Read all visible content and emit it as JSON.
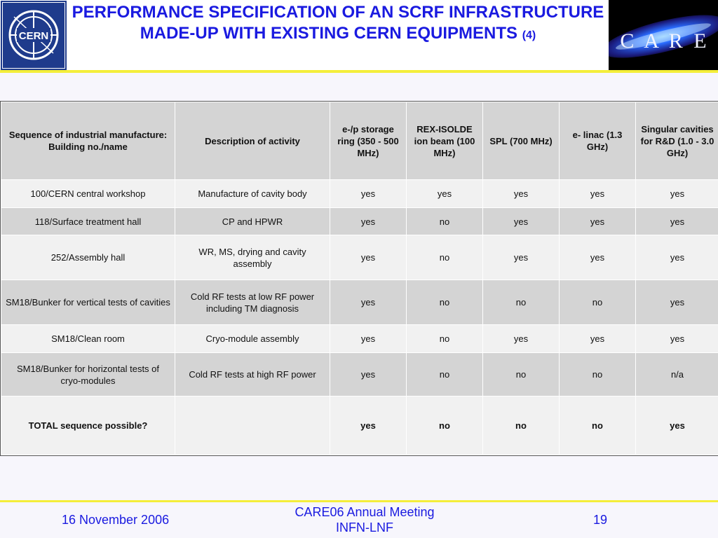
{
  "header": {
    "title_main": "PERFORMANCE SPECIFICATION OF AN SCRF INFRASTRUCTURE MADE-UP WITH EXISTING CERN EQUIPMENTS",
    "title_sub": "(4)",
    "left_logo_text": "CERN",
    "right_logo_text": "C A R E"
  },
  "table": {
    "headers": [
      "Sequence of industrial manufacture: Building no./name",
      "Description of activity",
      "e-/p storage ring (350 - 500 MHz)",
      "REX-ISOLDE ion beam (100 MHz)",
      "SPL (700 MHz)",
      "e- linac (1.3 GHz)",
      "Singular cavities for R&D (1.0 - 3.0 GHz)"
    ],
    "rows": [
      [
        "100/CERN central workshop",
        "Manufacture of cavity body",
        "yes",
        "yes",
        "yes",
        "yes",
        "yes"
      ],
      [
        "118/Surface treatment hall",
        "CP and HPWR",
        "yes",
        "no",
        "yes",
        "yes",
        "yes"
      ],
      [
        "252/Assembly hall",
        "WR, MS, drying and cavity assembly",
        "yes",
        "no",
        "yes",
        "yes",
        "yes"
      ],
      [
        "SM18/Bunker for vertical tests of cavities",
        "Cold RF tests at low RF power including TM diagnosis",
        "yes",
        "no",
        "no",
        "no",
        "yes"
      ],
      [
        "SM18/Clean room",
        "Cryo-module assembly",
        "yes",
        "no",
        "yes",
        "yes",
        "yes"
      ],
      [
        "SM18/Bunker for horizontal tests of cryo-modules",
        "Cold RF tests at high RF power",
        "yes",
        "no",
        "no",
        "no",
        "n/a"
      ],
      [
        "TOTAL sequence possible?",
        "",
        "yes",
        "no",
        "no",
        "no",
        "yes"
      ]
    ]
  },
  "footer": {
    "date": "16 November 2006",
    "meeting_line1": "CARE06 Annual Meeting",
    "meeting_line2": "INFN-LNF",
    "page": "19"
  }
}
